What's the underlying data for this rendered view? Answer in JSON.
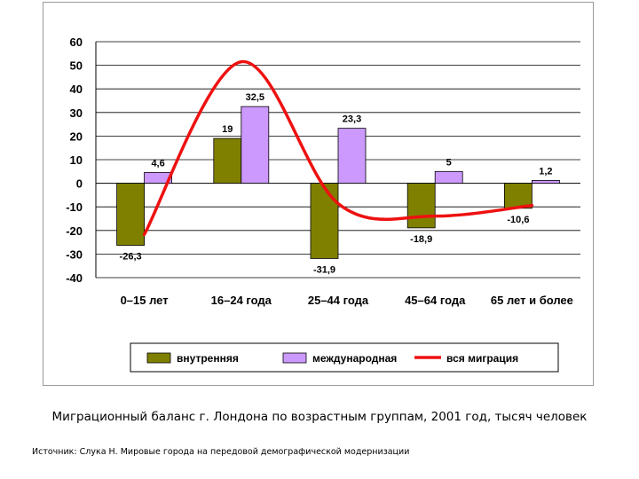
{
  "caption": "Миграционный баланс г. Лондона по возрастным группам, 2001 год, тысяч человек",
  "source": "Источник: Слука Н. Мировые города на передовой демографической модернизации",
  "chart_data": {
    "type": "bar",
    "categories": [
      "0–15 лет",
      "16–24 года",
      "25–44 года",
      "45–64 года",
      "65 лет и более"
    ],
    "series": [
      {
        "name": "внутренняя",
        "kind": "bar",
        "color": "#808000",
        "values": [
          -26.3,
          19,
          -31.9,
          -18.9,
          -10.6
        ],
        "labels": [
          "-26,3",
          "19",
          "-31,9",
          "-18,9",
          "-10,6"
        ]
      },
      {
        "name": "международная",
        "kind": "bar",
        "color": "#cc99ff",
        "values": [
          4.6,
          32.5,
          23.3,
          5,
          1.2
        ],
        "labels": [
          "4,6",
          "32,5",
          "23,3",
          "5",
          "1,2"
        ]
      },
      {
        "name": "вся миграция",
        "kind": "smoothed-line",
        "color": "#ee1111",
        "values": [
          -21.7,
          51.5,
          -8.6,
          -13.9,
          -9.4
        ]
      }
    ],
    "ylim": [
      -40,
      60
    ],
    "yticks": [
      60,
      50,
      40,
      30,
      20,
      10,
      0,
      -10,
      -20,
      -30,
      -40
    ],
    "grid": true,
    "legend": "bottom"
  }
}
